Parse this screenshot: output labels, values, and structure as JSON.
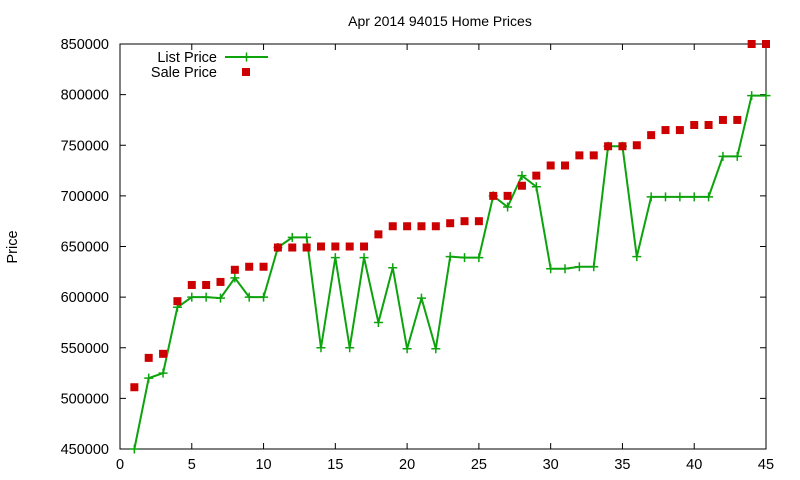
{
  "chart_data": {
    "type": "line",
    "title": "Apr 2014 94015 Home Prices",
    "xlabel": "",
    "ylabel": "Price",
    "xlim": [
      0,
      45
    ],
    "ylim": [
      450000,
      850000
    ],
    "xticks": [
      0,
      5,
      10,
      15,
      20,
      25,
      30,
      35,
      40,
      45
    ],
    "yticks": [
      450000,
      500000,
      550000,
      600000,
      650000,
      700000,
      750000,
      800000,
      850000
    ],
    "xtick_labels": [
      "0",
      "5",
      "10",
      "15",
      "20",
      "25",
      "30",
      "35",
      "40",
      "45"
    ],
    "ytick_labels": [
      "450000",
      "500000",
      "550000",
      "600000",
      "650000",
      "700000",
      "750000",
      "800000",
      "850000"
    ],
    "grid": false,
    "legend_position": "top-left",
    "series": [
      {
        "name": "List Price",
        "style": "line-with-plus-markers",
        "color": "#0ca30c",
        "x": [
          1,
          2,
          3,
          4,
          5,
          6,
          7,
          8,
          9,
          10,
          11,
          12,
          13,
          14,
          15,
          16,
          17,
          18,
          19,
          20,
          21,
          22,
          23,
          24,
          25,
          26,
          27,
          28,
          29,
          30,
          31,
          32,
          33,
          34,
          35,
          36,
          37,
          38,
          39,
          40,
          41,
          42,
          43,
          44,
          45
        ],
        "values": [
          450000,
          520000,
          525000,
          590000,
          600000,
          600000,
          599000,
          619000,
          600000,
          600000,
          649000,
          659000,
          659000,
          550000,
          639000,
          550000,
          639000,
          575000,
          629000,
          549000,
          599000,
          549000,
          640000,
          639000,
          639000,
          700000,
          689000,
          720000,
          709000,
          628000,
          628000,
          630000,
          630000,
          749000,
          749000,
          640000,
          699000,
          699000,
          699000,
          699000,
          699000,
          739000,
          739000,
          799000,
          799000
        ]
      },
      {
        "name": "Sale Price",
        "style": "square-markers",
        "color": "#cc0000",
        "x": [
          1,
          2,
          3,
          4,
          5,
          6,
          7,
          8,
          9,
          10,
          11,
          12,
          13,
          14,
          15,
          16,
          17,
          18,
          19,
          20,
          21,
          22,
          23,
          24,
          25,
          26,
          27,
          28,
          29,
          30,
          31,
          32,
          33,
          34,
          35,
          36,
          37,
          38,
          39,
          40,
          41,
          42,
          43,
          44,
          45
        ],
        "values": [
          511000,
          540000,
          544000,
          596000,
          612000,
          612000,
          615000,
          627000,
          630000,
          630000,
          649000,
          649000,
          649000,
          650000,
          650000,
          650000,
          650000,
          662000,
          670000,
          670000,
          670000,
          670000,
          673000,
          675000,
          675000,
          700000,
          700000,
          710000,
          720000,
          730000,
          730000,
          740000,
          740000,
          749000,
          749000,
          750000,
          760000,
          765000,
          765000,
          770000,
          770000,
          775000,
          775000,
          850000,
          850000
        ]
      }
    ]
  }
}
